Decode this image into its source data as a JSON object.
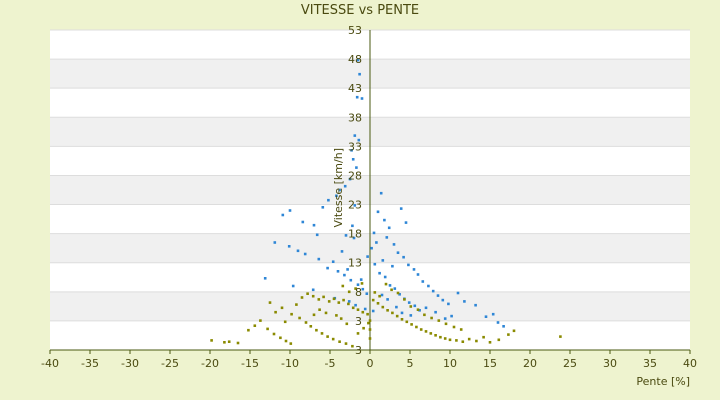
{
  "colors": {
    "background": "#eef3cf",
    "plot_band_light": "#ffffff",
    "plot_band_dark": "#f0f0f0",
    "axis": "#4a5a10",
    "series_blue": "#2e86d6",
    "series_olive": "#8a8a00"
  },
  "chart_data": {
    "type": "scatter",
    "title": "VITESSE vs PENTE",
    "xlabel": "Pente [%]",
    "ylabel": "Vitesse [km/h]",
    "xlim": [
      -40,
      40
    ],
    "ylim": [
      3,
      53
    ],
    "x_ticks": [
      "-40",
      "-35",
      "-30",
      "-25",
      "-20",
      "-15",
      "-10",
      "-5",
      "0",
      "5",
      "10",
      "15",
      "20",
      "25",
      "30",
      "35",
      "40"
    ],
    "y_ticks": [
      "3",
      "3",
      "8",
      "13",
      "18",
      "23",
      "28",
      "33",
      "38",
      "43",
      "48",
      "53"
    ],
    "grid": true,
    "legend": "none",
    "series": [
      {
        "color": "#2e86d6",
        "points": [
          [
            -1.5,
            48.3
          ],
          [
            -1.3,
            46.1
          ],
          [
            -1.6,
            42.5
          ],
          [
            -1.0,
            42.3
          ],
          [
            -1.9,
            36.5
          ],
          [
            -1.4,
            35.8
          ],
          [
            -2.3,
            34.2
          ],
          [
            -2.1,
            32.8
          ],
          [
            -1.7,
            31.5
          ],
          [
            -2.5,
            29.7
          ],
          [
            -3.1,
            28.6
          ],
          [
            -3.8,
            28.0
          ],
          [
            -4.2,
            27.1
          ],
          [
            -5.2,
            26.4
          ],
          [
            -5.9,
            25.3
          ],
          [
            -10.0,
            24.8
          ],
          [
            -10.9,
            24.1
          ],
          [
            -8.4,
            23.0
          ],
          [
            -7.0,
            22.5
          ],
          [
            -6.6,
            21.0
          ],
          [
            -3.0,
            20.9
          ],
          [
            -2.0,
            20.5
          ],
          [
            -11.9,
            19.8
          ],
          [
            -10.1,
            19.2
          ],
          [
            -9.0,
            18.5
          ],
          [
            -8.1,
            18.0
          ],
          [
            -6.4,
            17.2
          ],
          [
            -4.6,
            16.8
          ],
          [
            -5.3,
            15.8
          ],
          [
            -4.0,
            15.3
          ],
          [
            -3.2,
            14.7
          ],
          [
            -2.4,
            13.9
          ],
          [
            -1.5,
            13.2
          ],
          [
            -0.9,
            12.5
          ],
          [
            -0.4,
            11.8
          ],
          [
            -13.1,
            14.2
          ],
          [
            -9.6,
            13.0
          ],
          [
            -7.1,
            12.4
          ],
          [
            -4.4,
            11.1
          ],
          [
            -2.6,
            10.6
          ],
          [
            -1.8,
            10.0
          ],
          [
            -0.6,
            9.4
          ],
          [
            0.4,
            9.1
          ],
          [
            1.0,
            24.6
          ],
          [
            1.4,
            27.5
          ],
          [
            1.8,
            23.3
          ],
          [
            2.4,
            22.1
          ],
          [
            2.1,
            20.6
          ],
          [
            3.0,
            19.5
          ],
          [
            3.5,
            18.2
          ],
          [
            4.2,
            17.5
          ],
          [
            4.8,
            16.3
          ],
          [
            5.5,
            15.6
          ],
          [
            6.0,
            14.8
          ],
          [
            6.6,
            13.7
          ],
          [
            7.3,
            13.0
          ],
          [
            7.9,
            12.2
          ],
          [
            8.5,
            11.5
          ],
          [
            9.1,
            10.8
          ],
          [
            9.8,
            10.2
          ],
          [
            3.9,
            25.1
          ],
          [
            4.5,
            22.9
          ],
          [
            0.6,
            16.4
          ],
          [
            1.2,
            15.0
          ],
          [
            1.9,
            14.4
          ],
          [
            2.5,
            13.1
          ],
          [
            3.1,
            12.6
          ],
          [
            3.7,
            11.7
          ],
          [
            4.3,
            11.0
          ],
          [
            4.9,
            10.4
          ],
          [
            5.6,
            9.9
          ],
          [
            6.2,
            9.2
          ],
          [
            11.0,
            11.9
          ],
          [
            11.8,
            10.6
          ],
          [
            13.2,
            10.0
          ],
          [
            14.5,
            8.2
          ],
          [
            15.4,
            8.6
          ],
          [
            16.0,
            7.3
          ],
          [
            16.7,
            6.7
          ],
          [
            -2.8,
            15.6
          ],
          [
            -1.1,
            14.0
          ],
          [
            -0.3,
            17.6
          ],
          [
            0.2,
            18.9
          ],
          [
            0.8,
            19.8
          ],
          [
            1.6,
            17.0
          ],
          [
            2.8,
            16.1
          ],
          [
            -3.5,
            18.4
          ],
          [
            -2.2,
            22.4
          ],
          [
            -1.9,
            25.6
          ],
          [
            0.5,
            21.3
          ],
          [
            1.5,
            11.6
          ],
          [
            2.2,
            10.9
          ],
          [
            3.3,
            9.7
          ],
          [
            4.0,
            8.8
          ],
          [
            5.1,
            8.4
          ],
          [
            7.0,
            9.6
          ],
          [
            8.2,
            8.9
          ],
          [
            9.4,
            7.9
          ],
          [
            10.2,
            8.3
          ]
        ]
      },
      {
        "color": "#8a8a00",
        "points": [
          [
            -19.8,
            4.5
          ],
          [
            -18.2,
            4.2
          ],
          [
            -17.6,
            4.3
          ],
          [
            -16.5,
            4.1
          ],
          [
            -15.2,
            6.1
          ],
          [
            -14.4,
            6.8
          ],
          [
            -13.7,
            7.6
          ],
          [
            -12.8,
            6.3
          ],
          [
            -12.0,
            5.5
          ],
          [
            -11.2,
            4.9
          ],
          [
            -10.5,
            4.4
          ],
          [
            -9.9,
            4.0
          ],
          [
            -10.6,
            7.4
          ],
          [
            -9.8,
            8.6
          ],
          [
            -9.2,
            10.1
          ],
          [
            -8.5,
            11.2
          ],
          [
            -7.8,
            11.8
          ],
          [
            -7.1,
            11.4
          ],
          [
            -6.4,
            10.9
          ],
          [
            -5.8,
            11.3
          ],
          [
            -5.1,
            10.6
          ],
          [
            -4.5,
            11.0
          ],
          [
            -3.9,
            10.4
          ],
          [
            -3.3,
            10.8
          ],
          [
            -2.7,
            10.2
          ],
          [
            -2.1,
            9.6
          ],
          [
            -1.5,
            9.3
          ],
          [
            -0.9,
            8.9
          ],
          [
            -0.3,
            8.6
          ],
          [
            -8.8,
            8.0
          ],
          [
            -8.0,
            7.3
          ],
          [
            -7.4,
            6.7
          ],
          [
            -6.7,
            6.1
          ],
          [
            -6.0,
            5.6
          ],
          [
            -5.3,
            5.1
          ],
          [
            -4.6,
            4.7
          ],
          [
            -3.8,
            4.3
          ],
          [
            -3.0,
            4.0
          ],
          [
            -2.2,
            3.6
          ],
          [
            -1.5,
            5.6
          ],
          [
            -0.8,
            6.4
          ],
          [
            -0.2,
            7.2
          ],
          [
            0.0,
            4.8
          ],
          [
            0.0,
            6.2
          ],
          [
            0.0,
            7.6
          ],
          [
            0.4,
            10.8
          ],
          [
            1.0,
            10.3
          ],
          [
            1.6,
            9.7
          ],
          [
            2.2,
            9.2
          ],
          [
            2.8,
            8.8
          ],
          [
            3.4,
            8.3
          ],
          [
            4.0,
            7.8
          ],
          [
            4.6,
            7.4
          ],
          [
            5.2,
            7.0
          ],
          [
            5.8,
            6.6
          ],
          [
            6.4,
            6.2
          ],
          [
            7.0,
            5.9
          ],
          [
            7.6,
            5.6
          ],
          [
            8.2,
            5.3
          ],
          [
            8.8,
            5.0
          ],
          [
            9.4,
            4.8
          ],
          [
            10.0,
            4.6
          ],
          [
            10.8,
            4.5
          ],
          [
            11.6,
            4.3
          ],
          [
            12.4,
            4.7
          ],
          [
            13.3,
            4.4
          ],
          [
            14.2,
            5.0
          ],
          [
            15.0,
            4.2
          ],
          [
            16.1,
            4.6
          ],
          [
            17.3,
            5.4
          ],
          [
            18.0,
            6.0
          ],
          [
            23.8,
            5.1
          ],
          [
            -1.0,
            13.4
          ],
          [
            -1.8,
            12.6
          ],
          [
            -2.6,
            12.1
          ],
          [
            -3.4,
            13.0
          ],
          [
            0.6,
            12.0
          ],
          [
            1.2,
            11.4
          ],
          [
            2.0,
            13.3
          ],
          [
            2.7,
            12.4
          ],
          [
            3.5,
            11.9
          ],
          [
            4.3,
            10.9
          ],
          [
            5.1,
            9.8
          ],
          [
            6.0,
            9.3
          ],
          [
            6.8,
            8.5
          ],
          [
            7.7,
            8.0
          ],
          [
            8.6,
            7.6
          ],
          [
            9.5,
            7.1
          ],
          [
            10.5,
            6.6
          ],
          [
            11.4,
            6.2
          ],
          [
            -11.8,
            8.9
          ],
          [
            -11.0,
            9.6
          ],
          [
            -12.5,
            10.4
          ],
          [
            -4.2,
            8.4
          ],
          [
            -3.6,
            7.9
          ],
          [
            -2.9,
            7.1
          ],
          [
            -5.5,
            8.8
          ],
          [
            -6.3,
            9.3
          ],
          [
            -7.0,
            8.5
          ]
        ]
      }
    ]
  }
}
